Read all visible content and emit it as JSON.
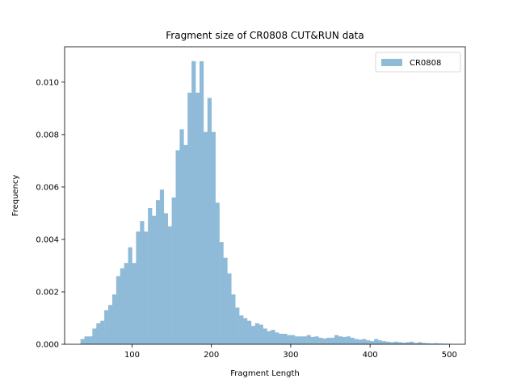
{
  "chart_data": {
    "type": "bar",
    "title": "Fragment size of CR0808 CUT&RUN data",
    "xlabel": "Fragment Length",
    "ylabel": "Frequency",
    "xlim": [
      15,
      520
    ],
    "ylim": [
      0,
      0.01135
    ],
    "xticks": [
      100,
      200,
      300,
      400,
      500
    ],
    "yticks": [
      0.0,
      0.002,
      0.004,
      0.006,
      0.008,
      0.01
    ],
    "ytick_labels": [
      "0.000",
      "0.002",
      "0.004",
      "0.006",
      "0.008",
      "0.010"
    ],
    "legend": {
      "position": "top-right"
    },
    "series": [
      {
        "name": "CR0808",
        "color": "#8fbbd9",
        "bin_edges": [
          35,
          40,
          45,
          50,
          55,
          60,
          65,
          70,
          75,
          80,
          85,
          90,
          95,
          100,
          105,
          110,
          115,
          120,
          125,
          130,
          135,
          140,
          145,
          150,
          155,
          160,
          165,
          170,
          175,
          180,
          185,
          190,
          195,
          200,
          205,
          210,
          215,
          220,
          225,
          230,
          235,
          240,
          245,
          250,
          255,
          260,
          265,
          270,
          275,
          280,
          285,
          290,
          295,
          300,
          305,
          310,
          315,
          320,
          325,
          330,
          335,
          340,
          345,
          350,
          355,
          360,
          365,
          370,
          375,
          380,
          385,
          390,
          395,
          400,
          405,
          410,
          415,
          420,
          425,
          430,
          435,
          440,
          445,
          450,
          455,
          460,
          465,
          470,
          475,
          480,
          485,
          490,
          495,
          500
        ],
        "values": [
          0.0002,
          0.0003,
          0.0003,
          0.0006,
          0.0008,
          0.0009,
          0.0013,
          0.0015,
          0.0019,
          0.0026,
          0.0029,
          0.0031,
          0.0037,
          0.0031,
          0.0043,
          0.0047,
          0.0043,
          0.0052,
          0.0049,
          0.0055,
          0.0059,
          0.005,
          0.0045,
          0.0056,
          0.0074,
          0.0082,
          0.0076,
          0.0096,
          0.0108,
          0.0096,
          0.0108,
          0.0081,
          0.0094,
          0.0081,
          0.0054,
          0.0039,
          0.0033,
          0.0027,
          0.0019,
          0.0014,
          0.0011,
          0.001,
          0.0009,
          0.0007,
          0.0008,
          0.00075,
          0.0006,
          0.0005,
          0.00055,
          0.00045,
          0.0004,
          0.0004,
          0.00035,
          0.00035,
          0.0003,
          0.0003,
          0.0003,
          0.00035,
          0.00028,
          0.0003,
          0.00025,
          0.00022,
          0.00025,
          0.00025,
          0.00035,
          0.0003,
          0.00028,
          0.0003,
          0.00025,
          0.0002,
          0.00018,
          0.0002,
          0.00015,
          0.00012,
          0.0002,
          0.00015,
          0.00012,
          0.0001,
          8e-05,
          0.0001,
          8e-05,
          6e-05,
          8e-05,
          0.0001,
          5e-05,
          8e-05,
          5e-05,
          4e-05,
          3e-05,
          4e-05,
          3e-05,
          2e-05,
          2e-05
        ]
      }
    ]
  }
}
